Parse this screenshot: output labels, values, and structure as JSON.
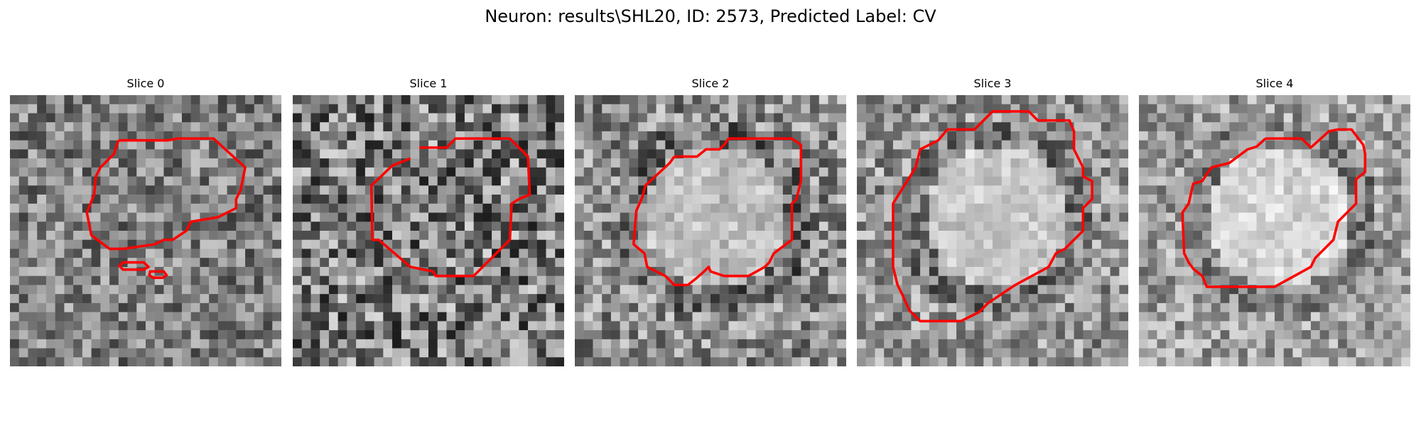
{
  "figure": {
    "title": "Neuron: results\\SHL20, ID: 2573, Predicted Label: CV"
  },
  "contour_color": "#ff0000",
  "colormap": "gray",
  "slices": [
    {
      "title": "Slice 0"
    },
    {
      "title": "Slice 1"
    },
    {
      "title": "Slice 2"
    },
    {
      "title": "Slice 3"
    },
    {
      "title": "Slice 4"
    }
  ]
}
